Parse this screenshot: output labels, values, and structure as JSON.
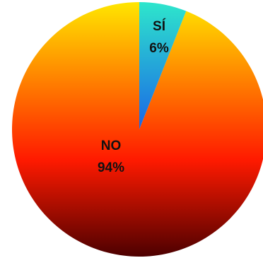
{
  "chart_data": {
    "type": "pie",
    "title": "",
    "slices": [
      {
        "label": "SÍ",
        "value": 6,
        "value_label": "6%",
        "color_top": "#2ee6cc",
        "color_bottom": "#1a66e6"
      },
      {
        "label": "NO",
        "value": 94,
        "value_label": "94%",
        "color_top": "#ffe600",
        "color_bottom": "#4d0000",
        "color_mid": "#ff1a00"
      }
    ],
    "start_angle": "12 o'clock",
    "direction": "clockwise",
    "legend": "none",
    "data_labels": "inside"
  }
}
